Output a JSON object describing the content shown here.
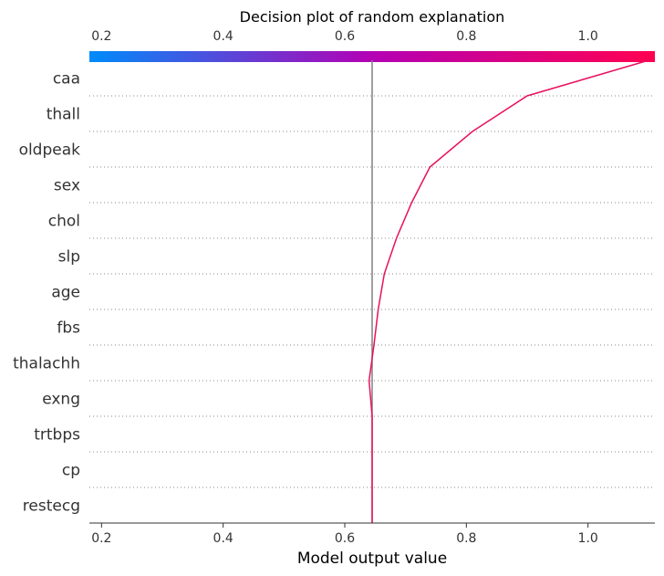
{
  "chart_data": {
    "type": "line",
    "title": "Decision plot of random explanation",
    "xlabel": "Model output value",
    "xlim": [
      0.18,
      1.11
    ],
    "x_ticks": [
      0.2,
      0.4,
      0.6,
      0.8,
      1.0
    ],
    "x_tick_labels": [
      "0.2",
      "0.4",
      "0.6",
      "0.8",
      "1.0"
    ],
    "base_value": 0.645,
    "features": [
      "caa",
      "thall",
      "oldpeak",
      "sex",
      "chol",
      "slp",
      "age",
      "fbs",
      "thalachh",
      "exng",
      "trtbps",
      "cp",
      "restecg"
    ],
    "series": [
      {
        "values": [
          1.1,
          0.9,
          0.81,
          0.74,
          0.71,
          0.685,
          0.665,
          0.655,
          0.648,
          0.64,
          0.645,
          0.645,
          0.645
        ]
      }
    ],
    "colorbar": {
      "low_color": "#008bfb",
      "mid_color": "#b400b4",
      "high_color": "#ff0051"
    },
    "line_color": "#e8105f",
    "base_line_color": "#808080",
    "grid": "dotted horizontal"
  }
}
